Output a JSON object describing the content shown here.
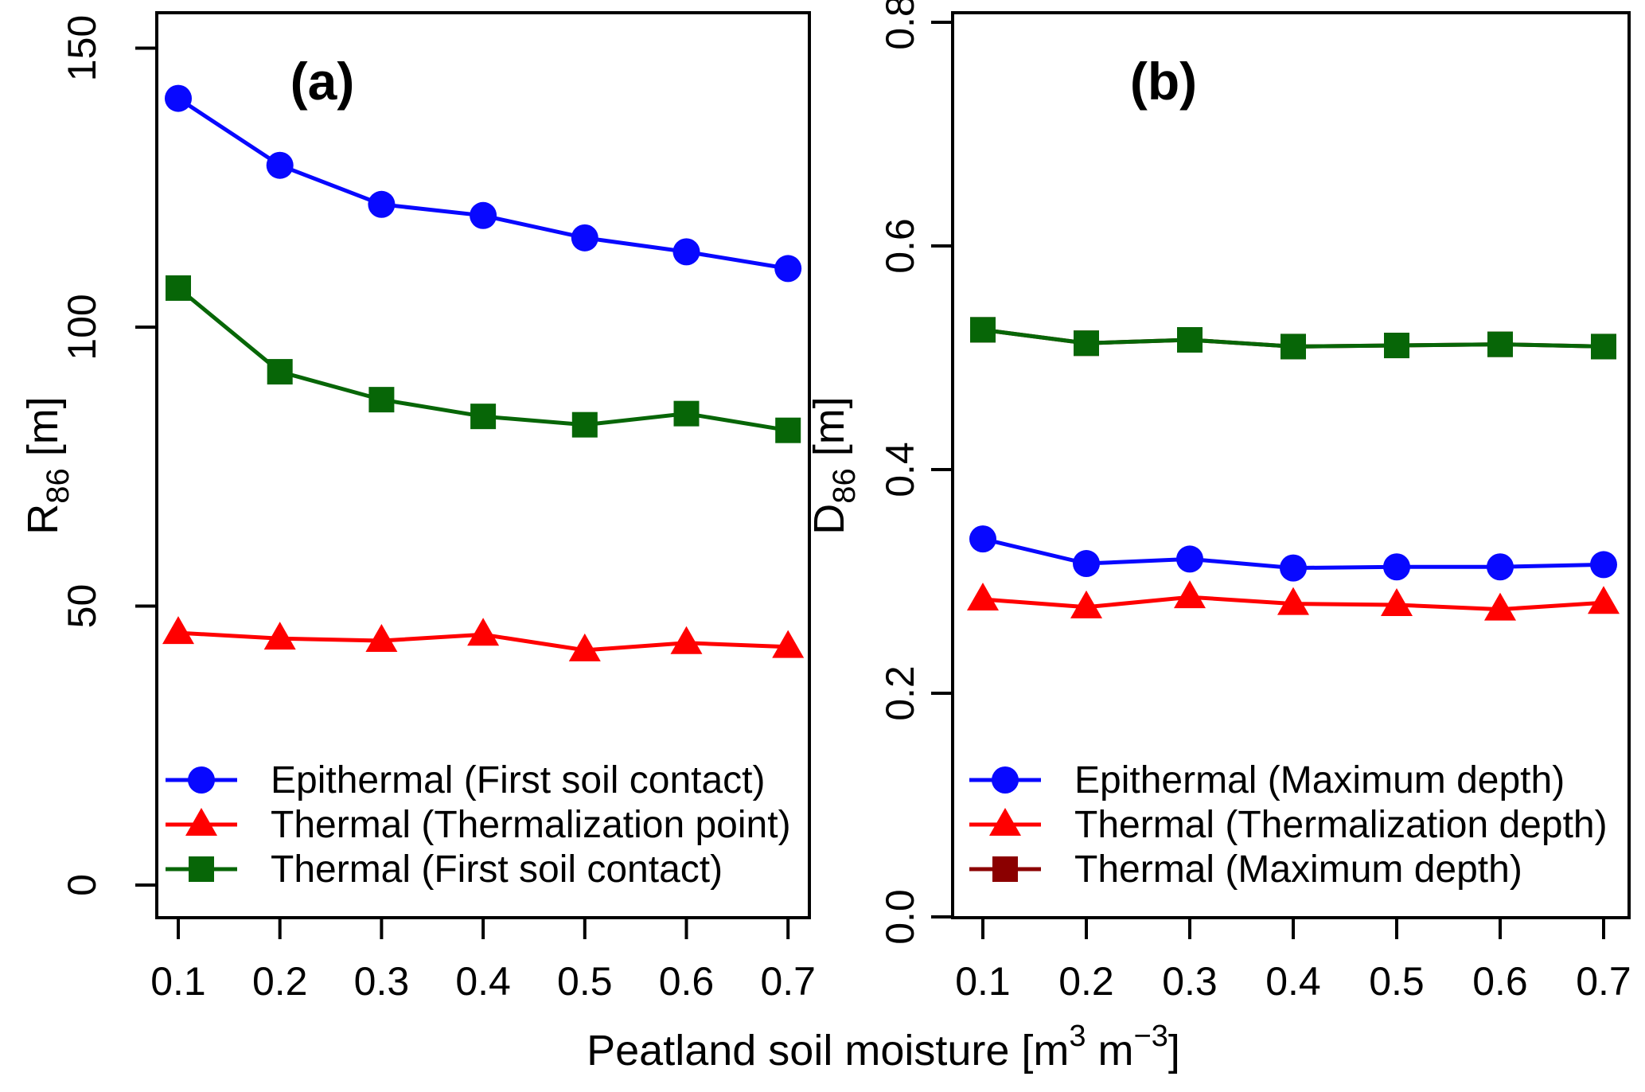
{
  "figure": {
    "background": "#ffffff",
    "x_axis_title_plain": "Peatland soil moisture [m3 m-3]",
    "x_axis_title_parts": [
      {
        "t": "Peatland soil moisture [m"
      },
      {
        "t": "3",
        "sup": true
      },
      {
        "t": " m",
        "reset": true
      },
      {
        "t": "−3",
        "sup": true
      },
      {
        "t": "]",
        "reset": true
      }
    ]
  },
  "colors": {
    "epithermal": "#0808ff",
    "thermal": "#ff0000",
    "thermal_first_contact": "#076607",
    "thermal_max_depth": "#8b0000",
    "axis": "#000000"
  },
  "chart_data": [
    {
      "id": "a",
      "type": "line",
      "panel_tag": "(a)",
      "ylabel_plain": "R86 [m]",
      "ylabel_parts": [
        {
          "t": "R"
        },
        {
          "t": "86",
          "sub": true
        },
        {
          "t": " [m]",
          "reset": true
        }
      ],
      "x": [
        0.1,
        0.2,
        0.3,
        0.4,
        0.5,
        0.6,
        0.7
      ],
      "xtick_labels": [
        "0.1",
        "0.2",
        "0.3",
        "0.4",
        "0.5",
        "0.6",
        "0.7"
      ],
      "ytick_values": [
        0,
        50,
        100,
        150
      ],
      "ytick_labels": [
        "0",
        "50",
        "100",
        "150"
      ],
      "ylim": [
        -6,
        156
      ],
      "grid": false,
      "legend_position": "bottom-left",
      "series": [
        {
          "name": "Epithermal (First soil contact)",
          "marker": "circle",
          "color_key": "epithermal",
          "in_legend": true,
          "legend_index": 0,
          "values": [
            141,
            129,
            122,
            120,
            116,
            113.5,
            110.5
          ]
        },
        {
          "name": "Thermal (Thermalization point)",
          "marker": "triangle",
          "color_key": "thermal",
          "in_legend": true,
          "legend_index": 1,
          "values": [
            45.2,
            44.2,
            43.8,
            44.9,
            42.1,
            43.4,
            42.7
          ]
        },
        {
          "name": "Thermal (First soil contact)",
          "marker": "square",
          "color_key": "thermal_first_contact",
          "in_legend": true,
          "legend_index": 2,
          "values": [
            107,
            92,
            87,
            84,
            82.5,
            84.5,
            81.5
          ]
        }
      ]
    },
    {
      "id": "b",
      "type": "line",
      "panel_tag": "(b)",
      "ylabel_plain": "D86 [m]",
      "ylabel_parts": [
        {
          "t": "D"
        },
        {
          "t": "86",
          "sub": true
        },
        {
          "t": " [m]",
          "reset": true
        }
      ],
      "x": [
        0.1,
        0.2,
        0.3,
        0.4,
        0.5,
        0.6,
        0.7
      ],
      "xtick_labels": [
        "0.1",
        "0.2",
        "0.3",
        "0.4",
        "0.5",
        "0.6",
        "0.7"
      ],
      "ytick_values": [
        0.0,
        0.2,
        0.4,
        0.6,
        0.8
      ],
      "ytick_labels": [
        "0.0",
        "0.2",
        "0.4",
        "0.6",
        "0.8"
      ],
      "ylim": [
        0,
        0.81
      ],
      "grid": false,
      "legend_position": "bottom-left",
      "series": [
        {
          "name": "Thermal (Maximum depth)",
          "marker": "square",
          "color_key": "thermal_max_depth",
          "in_legend": true,
          "legend_index": 2,
          "values": [
            0.525,
            0.513,
            0.516,
            0.51,
            0.511,
            0.512,
            0.51
          ]
        },
        {
          "name": "Thermal (First soil contact)",
          "marker": "square",
          "color_key": "thermal_first_contact",
          "in_legend": false,
          "legend_index": -1,
          "values": [
            0.525,
            0.513,
            0.516,
            0.51,
            0.511,
            0.512,
            0.51
          ]
        },
        {
          "name": "Epithermal (Maximum depth)",
          "marker": "circle",
          "color_key": "epithermal",
          "in_legend": true,
          "legend_index": 0,
          "values": [
            0.338,
            0.316,
            0.32,
            0.312,
            0.313,
            0.313,
            0.315
          ]
        },
        {
          "name": "Thermal (Thermalization depth)",
          "marker": "triangle",
          "color_key": "thermal",
          "in_legend": true,
          "legend_index": 1,
          "values": [
            0.284,
            0.277,
            0.286,
            0.28,
            0.279,
            0.275,
            0.281
          ]
        }
      ]
    }
  ]
}
